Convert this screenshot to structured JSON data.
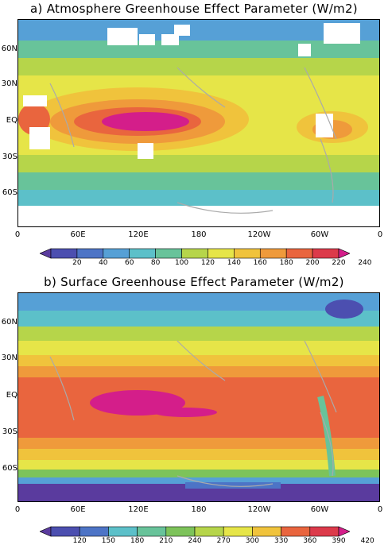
{
  "panels": [
    {
      "title": "a) Atmosphere Greenhouse Effect Parameter (W/m2)",
      "colorbar_ticks": [
        "20",
        "40",
        "60",
        "80",
        "100",
        "120",
        "140",
        "160",
        "180",
        "200",
        "220",
        "240"
      ]
    },
    {
      "title": "b) Surface Greenhouse Effect Parameter (W/m2)",
      "colorbar_ticks": [
        "120",
        "150",
        "180",
        "210",
        "240",
        "270",
        "300",
        "330",
        "360",
        "390",
        "420"
      ]
    }
  ],
  "lat_labels": [
    "60N",
    "30N",
    "EQ",
    "30S",
    "60S"
  ],
  "lon_labels": [
    "0",
    "60E",
    "120E",
    "180",
    "120W",
    "60W",
    "0"
  ],
  "palette": [
    "#5a3b9e",
    "#4c4fb0",
    "#4d74c6",
    "#56a0d6",
    "#5cc0c9",
    "#68c39a",
    "#7dc35a",
    "#b6d54a",
    "#e6e548",
    "#f0c33c",
    "#ef9a3b",
    "#e9653e",
    "#dc3a4a",
    "#d41e8a"
  ]
}
